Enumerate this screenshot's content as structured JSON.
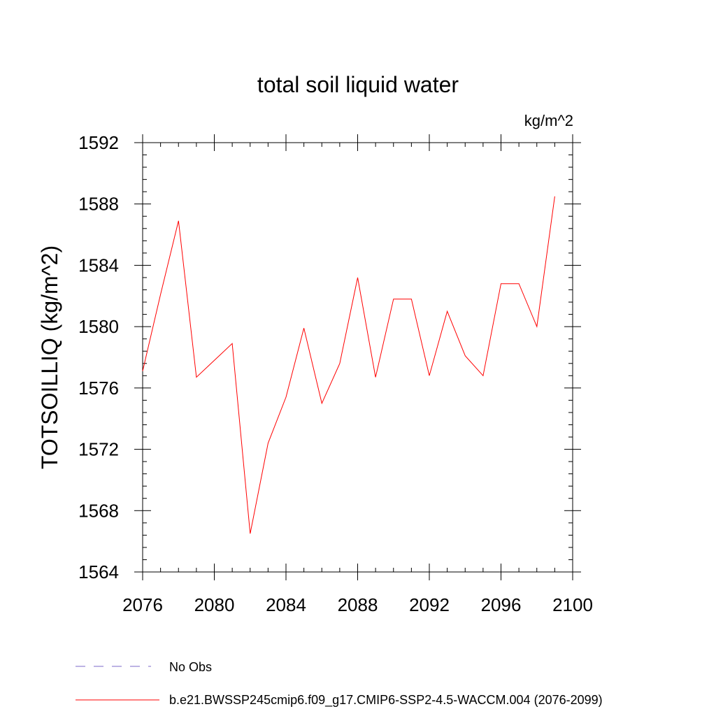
{
  "chart_data": {
    "type": "line",
    "title": "total soil liquid water",
    "units_label": "kg/m^2",
    "ylabel": "TOTSOILLIQ  (kg/m^2)",
    "xlabel": "",
    "xlim": [
      2076,
      2100
    ],
    "ylim": [
      1564,
      1592
    ],
    "x_ticks": [
      2076,
      2080,
      2084,
      2088,
      2092,
      2096,
      2100
    ],
    "y_ticks": [
      1564,
      1568,
      1572,
      1576,
      1580,
      1584,
      1588,
      1592
    ],
    "x_tick_labels": [
      "2076",
      "2080",
      "2084",
      "2088",
      "2092",
      "2096",
      "2100"
    ],
    "y_tick_labels": [
      "1564",
      "1568",
      "1572",
      "1576",
      "1580",
      "1584",
      "1588",
      "1592"
    ],
    "grid": false,
    "series": [
      {
        "name": "b.e21.BWSSP245cmip6.f09_g17.CMIP6-SSP2-4.5-WACCM.004 (2076-2099)",
        "color": "#ff0000",
        "style": "solid",
        "x": [
          2076,
          2077,
          2078,
          2079,
          2080,
          2081,
          2082,
          2083,
          2084,
          2085,
          2086,
          2087,
          2088,
          2089,
          2090,
          2091,
          2092,
          2093,
          2094,
          2095,
          2096,
          2097,
          2098,
          2099
        ],
        "values": [
          1577.1,
          1582.1,
          1586.9,
          1576.7,
          1577.8,
          1578.9,
          1566.5,
          1572.4,
          1575.4,
          1579.9,
          1575.0,
          1577.6,
          1583.2,
          1576.7,
          1581.8,
          1581.8,
          1576.8,
          1581.0,
          1578.1,
          1576.8,
          1582.8,
          1582.8,
          1580.0,
          1588.5
        ]
      }
    ],
    "legend": [
      {
        "label": "No Obs",
        "color": "#7b68c8",
        "style": "dashed"
      },
      {
        "label": "b.e21.BWSSP245cmip6.f09_g17.CMIP6-SSP2-4.5-WACCM.004 (2076-2099)",
        "color": "#ff0000",
        "style": "solid"
      }
    ],
    "legend_position": "bottom-left"
  }
}
